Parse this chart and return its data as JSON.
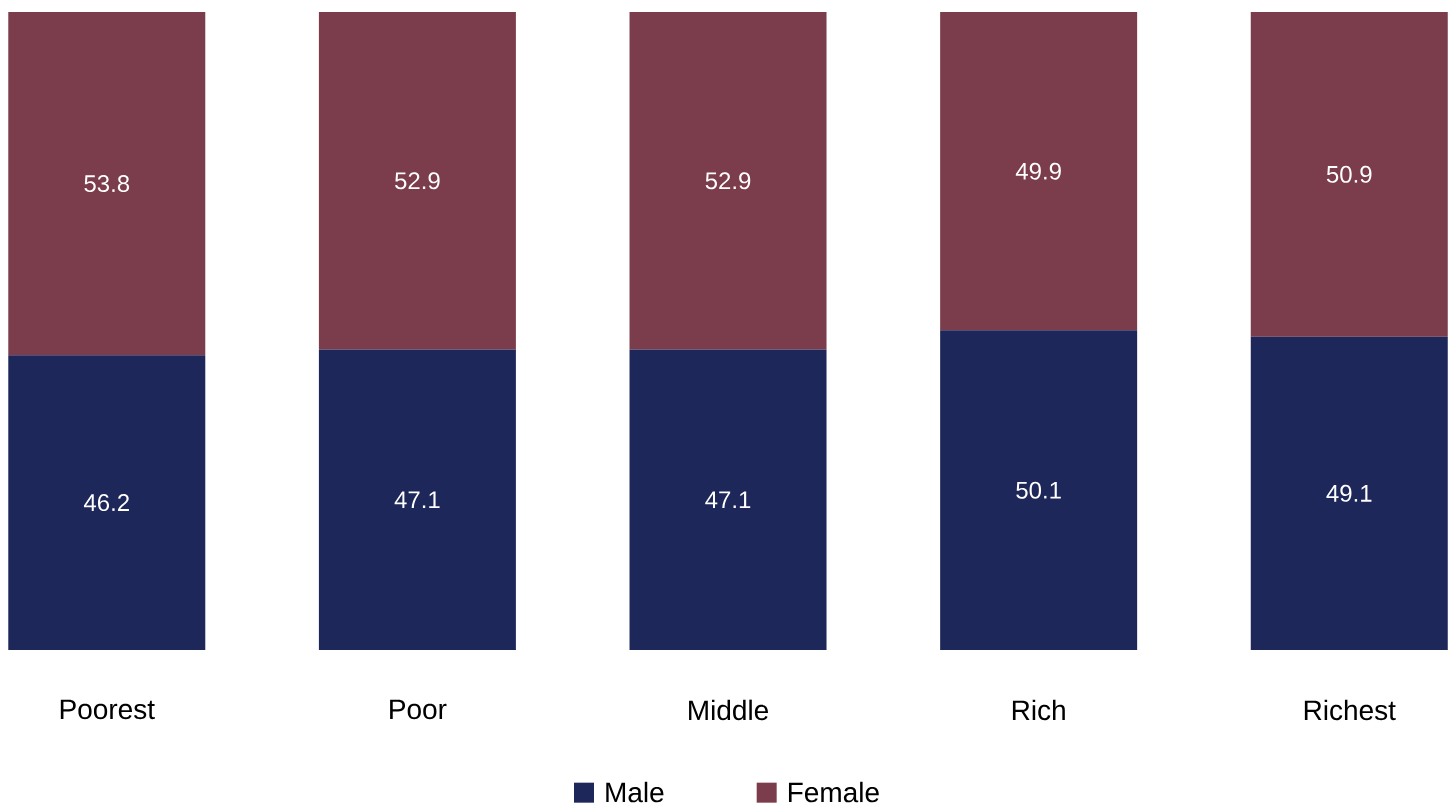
{
  "chart_data": {
    "type": "bar",
    "stacked": true,
    "categories": [
      "Poorest",
      "Poor",
      "Middle",
      "Rich",
      "Richest"
    ],
    "series": [
      {
        "name": "Male",
        "color": "#1e2759",
        "values": [
          46.2,
          47.1,
          47.1,
          50.1,
          49.1
        ]
      },
      {
        "name": "Female",
        "color": "#7b3d4b",
        "values": [
          53.8,
          52.9,
          52.9,
          49.9,
          50.9
        ]
      }
    ],
    "data_labels": true,
    "legend": "bottom"
  }
}
